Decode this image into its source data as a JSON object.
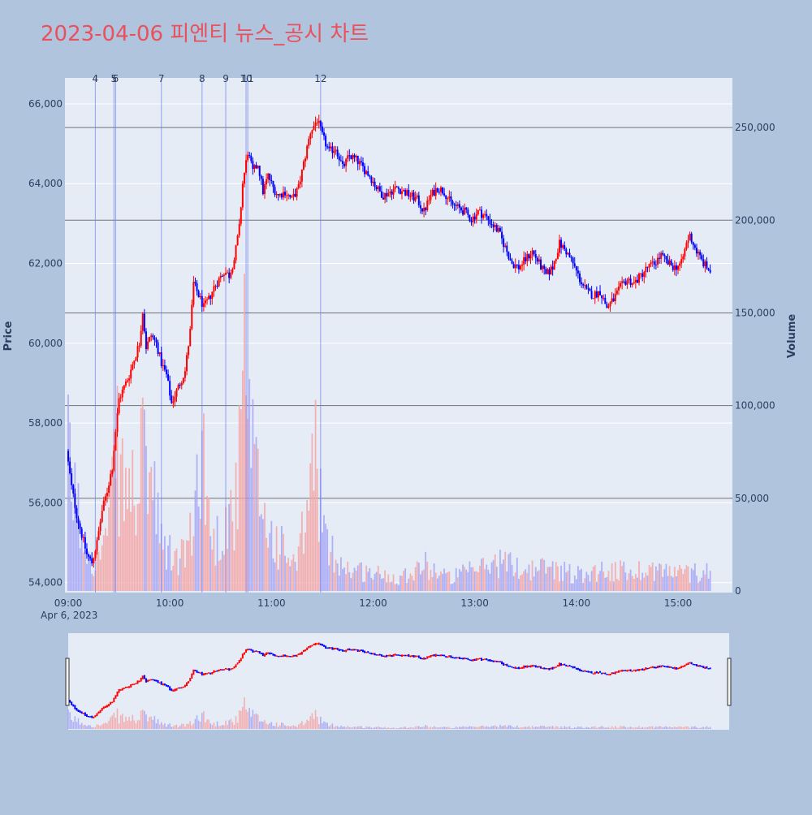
{
  "title": "2023-04-06 피엔티 뉴스_공시 차트",
  "colors": {
    "title": "#e8515d",
    "page_bg": "#b0c4de",
    "plot_bg": "#e5ecf6",
    "up": "#ff0000",
    "down": "#0000ff",
    "up_volume": "#f4a6a6",
    "down_volume": "#a6a6f4",
    "hline": "#555555",
    "news_line": "#6f7ff0"
  },
  "chart_data": {
    "type": "candlestick",
    "title": "2023-04-06 피엔티 뉴스_공시 차트",
    "x_axis": {
      "tick_labels": [
        "09:00",
        "10:00",
        "11:00",
        "12:00",
        "13:00",
        "14:00",
        "15:00"
      ],
      "date_label": "Apr 6, 2023",
      "range": [
        "09:00",
        "15:30"
      ]
    },
    "y_price": {
      "label": "Price",
      "ticks": [
        54000,
        56000,
        58000,
        60000,
        62000,
        64000,
        66000
      ],
      "tick_labels": [
        "54,000",
        "56,000",
        "58,000",
        "60,000",
        "62,000",
        "64,000",
        "66,000"
      ],
      "range": [
        53750,
        66650
      ]
    },
    "y_volume": {
      "label": "Volume",
      "ticks": [
        0,
        50000,
        100000,
        150000,
        200000,
        250000
      ],
      "tick_labels": [
        "0",
        "50,000",
        "100,000",
        "150,000",
        "200,000",
        "250,000"
      ],
      "range": [
        0,
        275000
      ]
    },
    "volume_hlines": [
      50000,
      100000,
      150000,
      200000,
      250000
    ],
    "news_events": [
      {
        "label": "4",
        "time": "09:16"
      },
      {
        "label": "5",
        "time": "09:27"
      },
      {
        "label": "6",
        "time": "09:28"
      },
      {
        "label": "7",
        "time": "09:55"
      },
      {
        "label": "8",
        "time": "10:19"
      },
      {
        "label": "9",
        "time": "10:33"
      },
      {
        "label": "10",
        "time": "10:45"
      },
      {
        "label": "11",
        "time": "10:46"
      },
      {
        "label": "12",
        "time": "11:29"
      }
    ],
    "price_path": [
      [
        "09:00",
        57300
      ],
      [
        "09:03",
        56400
      ],
      [
        "09:06",
        55700
      ],
      [
        "09:09",
        55200
      ],
      [
        "09:12",
        54700
      ],
      [
        "09:15",
        54500
      ],
      [
        "09:18",
        55000
      ],
      [
        "09:21",
        55800
      ],
      [
        "09:24",
        56300
      ],
      [
        "09:27",
        56900
      ],
      [
        "09:29",
        57800
      ],
      [
        "09:31",
        58600
      ],
      [
        "09:34",
        58900
      ],
      [
        "09:37",
        59200
      ],
      [
        "09:40",
        59600
      ],
      [
        "09:43",
        60000
      ],
      [
        "09:45",
        60800
      ],
      [
        "09:47",
        59900
      ],
      [
        "09:50",
        60200
      ],
      [
        "09:53",
        60000
      ],
      [
        "09:56",
        59500
      ],
      [
        "09:59",
        59200
      ],
      [
        "10:02",
        58500
      ],
      [
        "10:04",
        58700
      ],
      [
        "10:07",
        59000
      ],
      [
        "10:10",
        59300
      ],
      [
        "10:13",
        60300
      ],
      [
        "10:15",
        61500
      ],
      [
        "10:18",
        61200
      ],
      [
        "10:21",
        60900
      ],
      [
        "10:24",
        61100
      ],
      [
        "10:27",
        61400
      ],
      [
        "10:30",
        61600
      ],
      [
        "10:33",
        61800
      ],
      [
        "10:36",
        61700
      ],
      [
        "10:39",
        62100
      ],
      [
        "10:42",
        62900
      ],
      [
        "10:44",
        64000
      ],
      [
        "10:47",
        64800
      ],
      [
        "10:50",
        64300
      ],
      [
        "10:53",
        64500
      ],
      [
        "10:56",
        63800
      ],
      [
        "10:59",
        64200
      ],
      [
        "11:02",
        63900
      ],
      [
        "11:05",
        63700
      ],
      [
        "11:09",
        63800
      ],
      [
        "11:13",
        63600
      ],
      [
        "11:17",
        63900
      ],
      [
        "11:20",
        64500
      ],
      [
        "11:24",
        65300
      ],
      [
        "11:28",
        65600
      ],
      [
        "11:31",
        65200
      ],
      [
        "11:35",
        64800
      ],
      [
        "11:39",
        64900
      ],
      [
        "11:43",
        64400
      ],
      [
        "11:47",
        64700
      ],
      [
        "11:51",
        64600
      ],
      [
        "11:55",
        64400
      ],
      [
        "11:59",
        64200
      ],
      [
        "12:03",
        63900
      ],
      [
        "12:07",
        63700
      ],
      [
        "12:11",
        63800
      ],
      [
        "12:15",
        63900
      ],
      [
        "12:19",
        63800
      ],
      [
        "12:23",
        63700
      ],
      [
        "12:27",
        63600
      ],
      [
        "12:31",
        63300
      ],
      [
        "12:35",
        63700
      ],
      [
        "12:39",
        63900
      ],
      [
        "12:43",
        63800
      ],
      [
        "12:47",
        63500
      ],
      [
        "12:51",
        63400
      ],
      [
        "12:55",
        63300
      ],
      [
        "12:59",
        63100
      ],
      [
        "13:03",
        63300
      ],
      [
        "13:07",
        63200
      ],
      [
        "13:11",
        63000
      ],
      [
        "13:15",
        62800
      ],
      [
        "13:19",
        62400
      ],
      [
        "13:23",
        62000
      ],
      [
        "13:27",
        61900
      ],
      [
        "13:31",
        62100
      ],
      [
        "13:35",
        62300
      ],
      [
        "13:39",
        62000
      ],
      [
        "13:43",
        61700
      ],
      [
        "13:47",
        61900
      ],
      [
        "13:51",
        62500
      ],
      [
        "13:55",
        62300
      ],
      [
        "13:59",
        62000
      ],
      [
        "14:03",
        61600
      ],
      [
        "14:07",
        61300
      ],
      [
        "14:11",
        61200
      ],
      [
        "14:15",
        61300
      ],
      [
        "14:19",
        60900
      ],
      [
        "14:23",
        61100
      ],
      [
        "14:27",
        61400
      ],
      [
        "14:31",
        61600
      ],
      [
        "14:35",
        61500
      ],
      [
        "14:39",
        61700
      ],
      [
        "14:43",
        61900
      ],
      [
        "14:47",
        62000
      ],
      [
        "14:51",
        62200
      ],
      [
        "14:55",
        62000
      ],
      [
        "14:59",
        61900
      ],
      [
        "15:03",
        62000
      ],
      [
        "15:06",
        62500
      ],
      [
        "15:08",
        62700
      ],
      [
        "15:12",
        62300
      ],
      [
        "15:16",
        62000
      ],
      [
        "15:20",
        61800
      ],
      [
        "15:24",
        61700
      ],
      [
        "15:28",
        61700
      ]
    ],
    "volume_profile": [
      [
        "09:00",
        85000
      ],
      [
        "09:08",
        40000
      ],
      [
        "09:16",
        20000
      ],
      [
        "09:24",
        40000
      ],
      [
        "09:28",
        95000
      ],
      [
        "09:32",
        70000
      ],
      [
        "09:40",
        65000
      ],
      [
        "09:46",
        95000
      ],
      [
        "09:55",
        30000
      ],
      [
        "10:05",
        20000
      ],
      [
        "10:14",
        38000
      ],
      [
        "10:18",
        110000
      ],
      [
        "10:25",
        30000
      ],
      [
        "10:40",
        60000
      ],
      [
        "10:44",
        150000
      ],
      [
        "10:48",
        90000
      ],
      [
        "10:58",
        40000
      ],
      [
        "11:05",
        30000
      ],
      [
        "11:15",
        15000
      ],
      [
        "11:22",
        60000
      ],
      [
        "11:26",
        95000
      ],
      [
        "11:32",
        30000
      ],
      [
        "11:45",
        15000
      ],
      [
        "12:00",
        12000
      ],
      [
        "12:15",
        9000
      ],
      [
        "12:30",
        18000
      ],
      [
        "12:45",
        9000
      ],
      [
        "13:00",
        14000
      ],
      [
        "13:15",
        20000
      ],
      [
        "13:30",
        14000
      ],
      [
        "13:45",
        16000
      ],
      [
        "14:00",
        11000
      ],
      [
        "14:15",
        14000
      ],
      [
        "14:30",
        13000
      ],
      [
        "14:45",
        15000
      ],
      [
        "15:00",
        12000
      ],
      [
        "15:15",
        13000
      ],
      [
        "15:28",
        18000
      ]
    ]
  }
}
